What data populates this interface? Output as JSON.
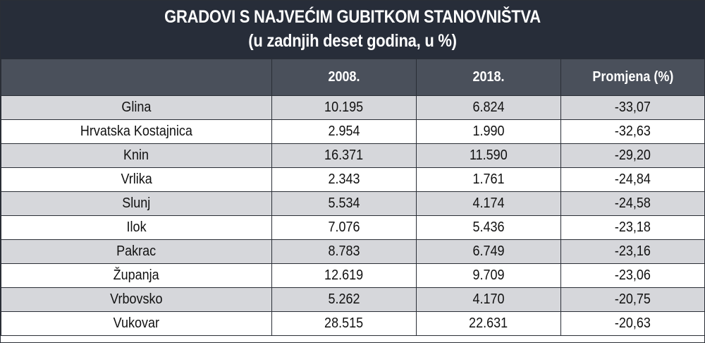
{
  "chart_data": {
    "type": "table",
    "title": "GRADOVI S NAJVEĆIM GUBITKOM STANOVNIŠTVA",
    "subtitle": "(u zadnjih deset godina, u %)",
    "columns": [
      "",
      "2008.",
      "2018.",
      "Promjena (%)"
    ],
    "rows": [
      {
        "city": "Glina",
        "y2008": "10.195",
        "y2018": "6.824",
        "change": "-33,07"
      },
      {
        "city": "Hrvatska Kostajnica",
        "y2008": "2.954",
        "y2018": "1.990",
        "change": "-32,63"
      },
      {
        "city": "Knin",
        "y2008": "16.371",
        "y2018": "11.590",
        "change": "-29,20"
      },
      {
        "city": "Vrlika",
        "y2008": "2.343",
        "y2018": "1.761",
        "change": "-24,84"
      },
      {
        "city": "Slunj",
        "y2008": "5.534",
        "y2018": "4.174",
        "change": "-24,58"
      },
      {
        "city": "Ilok",
        "y2008": "7.076",
        "y2018": "5.436",
        "change": "-23,18"
      },
      {
        "city": "Pakrac",
        "y2008": "8.783",
        "y2018": "6.749",
        "change": "-23,16"
      },
      {
        "city": "Županja",
        "y2008": "12.619",
        "y2018": "9.709",
        "change": "-23,06"
      },
      {
        "city": "Vrbovsko",
        "y2008": "5.262",
        "y2018": "4.170",
        "change": "-20,75"
      },
      {
        "city": "Vukovar",
        "y2008": "28.515",
        "y2018": "22.631",
        "change": "-20,63"
      }
    ]
  },
  "colors": {
    "title_background": "#272d39",
    "header_background": "#4a505b",
    "row_stripe": "#d6d7db",
    "border": "#2a2e36"
  }
}
